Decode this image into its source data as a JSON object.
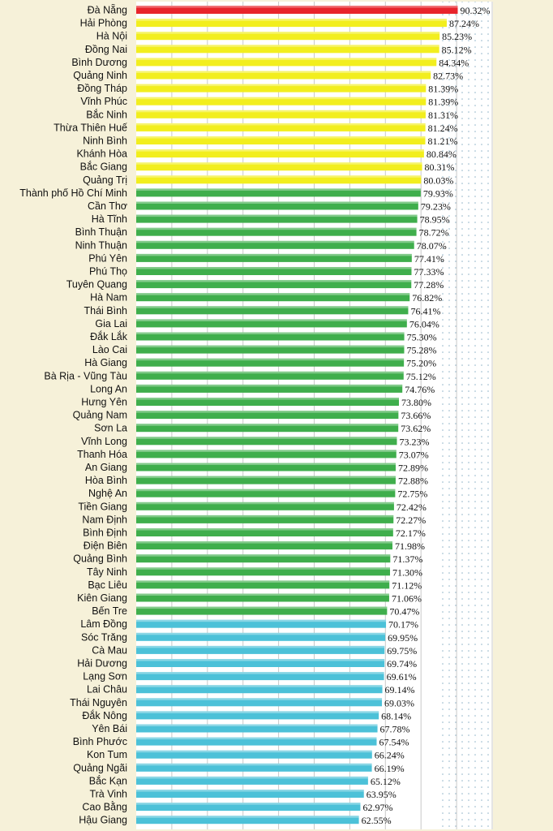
{
  "chart_data": {
    "type": "bar",
    "orientation": "horizontal",
    "value_suffix": "%",
    "xlim": [
      0,
      100
    ],
    "grid": true,
    "colors": {
      "red": "#e8242b",
      "yellow": "#f2ee1e",
      "green": "#3fae4c",
      "blue": "#4cc1d8"
    },
    "categories": [
      "Đà Nẵng",
      "Hải Phòng",
      "Hà Nội",
      "Đồng Nai",
      "Bình Dương",
      "Quảng Ninh",
      "Đồng Tháp",
      "Vĩnh Phúc",
      "Bắc Ninh",
      "Thừa Thiên Huế",
      "Ninh Bình",
      "Khánh Hòa",
      "Bắc Giang",
      "Quảng Trị",
      "Thành phố Hồ Chí Minh",
      "Cần Thơ",
      "Hà Tĩnh",
      "Bình Thuận",
      "Ninh Thuận",
      "Phú Yên",
      "Phú Thọ",
      "Tuyên Quang",
      "Hà Nam",
      "Thái Bình",
      "Gia Lai",
      "Đắk Lắk",
      "Lào Cai",
      "Hà Giang",
      "Bà Rịa - Vũng Tàu",
      "Long An",
      "Hưng Yên",
      "Quảng Nam",
      "Sơn La",
      "Vĩnh Long",
      "Thanh Hóa",
      "An Giang",
      "Hòa Bình",
      "Nghệ An",
      "Tiền Giang",
      "Nam Định",
      "Bình Định",
      "Điện Biên",
      "Quảng Bình",
      "Tây Ninh",
      "Bạc Liêu",
      "Kiên Giang",
      "Bến Tre",
      "Lâm Đồng",
      "Sóc Trăng",
      "Cà Mau",
      "Hải Dương",
      "Lạng Sơn",
      "Lai Châu",
      "Thái Nguyên",
      "Đắk Nông",
      "Yên Bái",
      "Bình Phước",
      "Kon Tum",
      "Quảng Ngãi",
      "Bắc Kạn",
      "Trà Vinh",
      "Cao Bằng",
      "Hậu Giang"
    ],
    "values": [
      90.32,
      87.24,
      85.23,
      85.12,
      84.34,
      82.73,
      81.39,
      81.39,
      81.31,
      81.24,
      81.21,
      80.84,
      80.31,
      80.03,
      79.93,
      79.23,
      78.95,
      78.72,
      78.07,
      77.41,
      77.33,
      77.28,
      76.82,
      76.41,
      76.04,
      75.3,
      75.28,
      75.2,
      75.12,
      74.76,
      73.8,
      73.66,
      73.62,
      73.23,
      73.07,
      72.89,
      72.88,
      72.75,
      72.42,
      72.27,
      72.17,
      71.98,
      71.37,
      71.3,
      71.12,
      71.06,
      70.47,
      70.17,
      69.95,
      69.75,
      69.74,
      69.61,
      69.14,
      69.03,
      68.14,
      67.78,
      67.54,
      66.24,
      66.19,
      65.12,
      63.95,
      62.97,
      62.55
    ],
    "value_labels": [
      "90.32%",
      "87.24%",
      "85.23%",
      "85.12%",
      "84.34%",
      "82.73%",
      "81.39%",
      "81.39%",
      "81.31%",
      "81.24%",
      "81.21%",
      "80.84%",
      "80.31%",
      "80.03%",
      "79.93%",
      "79.23%",
      "78.95%",
      "78.72%",
      "78.07%",
      "77.41%",
      "77.33%",
      "77.28%",
      "76.82%",
      "76.41%",
      "76.04%",
      "75.30%",
      "75.28%",
      "75.20%",
      "75.12%",
      "74.76%",
      "73.80%",
      "73.66%",
      "73.62%",
      "73.23%",
      "73.07%",
      "72.89%",
      "72.88%",
      "72.75%",
      "72.42%",
      "72.27%",
      "72.17%",
      "71.98%",
      "71.37%",
      "71.30%",
      "71.12%",
      "71.06%",
      "70.47%",
      "70.17%",
      "69.95%",
      "69.75%",
      "69.74%",
      "69.61%",
      "69.14%",
      "69.03%",
      "68.14%",
      "67.78%",
      "67.54%",
      "66.24%",
      "66.19%",
      "65.12%",
      "63.95%",
      "62.97%",
      "62.55%"
    ],
    "bar_color_groups": [
      "red",
      "yellow",
      "yellow",
      "yellow",
      "yellow",
      "yellow",
      "yellow",
      "yellow",
      "yellow",
      "yellow",
      "yellow",
      "yellow",
      "yellow",
      "yellow",
      "green",
      "green",
      "green",
      "green",
      "green",
      "green",
      "green",
      "green",
      "green",
      "green",
      "green",
      "green",
      "green",
      "green",
      "green",
      "green",
      "green",
      "green",
      "green",
      "green",
      "green",
      "green",
      "green",
      "green",
      "green",
      "green",
      "green",
      "green",
      "green",
      "green",
      "green",
      "green",
      "green",
      "blue",
      "blue",
      "blue",
      "blue",
      "blue",
      "blue",
      "blue",
      "blue",
      "blue",
      "blue",
      "blue",
      "blue",
      "blue",
      "blue",
      "blue",
      "blue"
    ]
  }
}
